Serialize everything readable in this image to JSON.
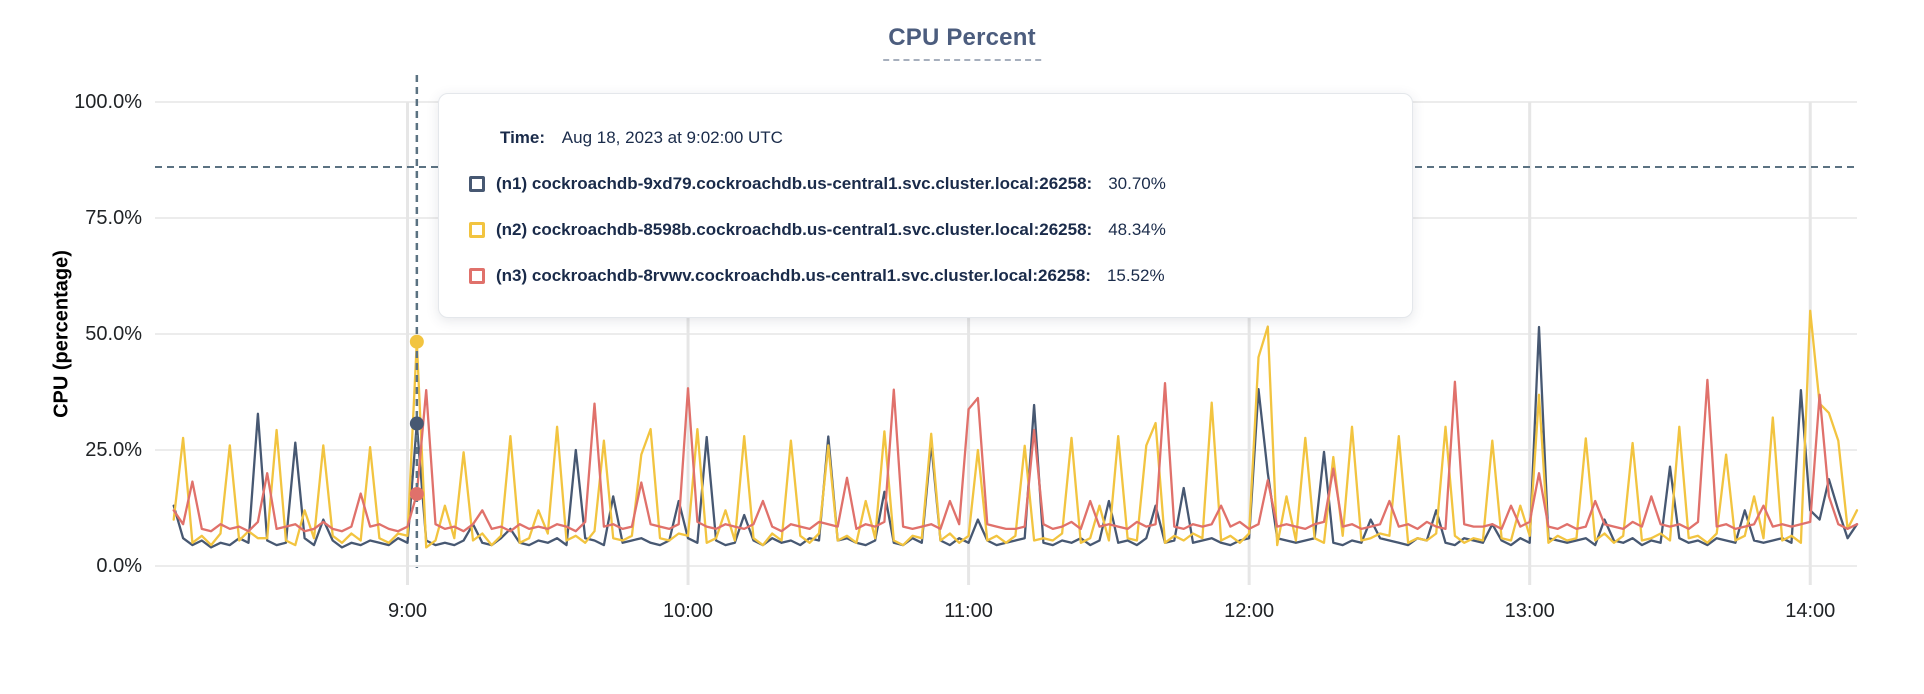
{
  "title": {
    "text": "CPU Percent"
  },
  "y_axis": {
    "label": "CPU (percentage)"
  },
  "tooltip": {
    "time_label": "Time:",
    "time_value": "Aug 18, 2023 at 9:02:00 UTC",
    "rows": [
      {
        "label": "(n1) cockroachdb-9xd79.cockroachdb.us-central1.svc.cluster.local:26258:",
        "value": "30.70%"
      },
      {
        "label": "(n2) cockroachdb-8598b.cockroachdb.us-central1.svc.cluster.local:26258:",
        "value": "48.34%"
      },
      {
        "label": "(n3) cockroachdb-8rvwv.cockroachdb.us-central1.svc.cluster.local:26258:",
        "value": "15.52%"
      }
    ]
  },
  "colors": {
    "crosshair": "#5B7282",
    "grid_h": "#ECECEC",
    "grid_v": "#E6E6E6",
    "tick_text": "#202326",
    "title": "#4C5D7E",
    "tooltip_text": "#1A2B4A"
  },
  "chart_data": {
    "type": "line",
    "title": "CPU Percent",
    "xlabel": "",
    "ylabel": "CPU (percentage)",
    "ylim": [
      0,
      100
    ],
    "grid": true,
    "legend_position": "hover-tooltip-overlay",
    "y_ticks": [
      {
        "value": 0,
        "label": "0.0%"
      },
      {
        "value": 25,
        "label": "25.0%"
      },
      {
        "value": 50,
        "label": "50.0%"
      },
      {
        "value": 75,
        "label": "75.0%"
      },
      {
        "value": 100,
        "label": "100.0%"
      }
    ],
    "x_domain_minutes": [
      486,
      850
    ],
    "x_ticks": [
      {
        "minute": 540,
        "label": "9:00"
      },
      {
        "minute": 600,
        "label": "10:00"
      },
      {
        "minute": 660,
        "label": "11:00"
      },
      {
        "minute": 720,
        "label": "12:00"
      },
      {
        "minute": 780,
        "label": "13:00"
      },
      {
        "minute": 840,
        "label": "14:00"
      }
    ],
    "x_start_minute": 490,
    "x_step_minutes": 2,
    "hover": {
      "minute": 542,
      "time": "Aug 18, 2023 at 9:02:00 UTC",
      "crosshair_y_percent": 86
    },
    "series": [
      {
        "name": "(n1) cockroachdb-9xd79.cockroachdb.us-central1.svc.cluster.local:26258",
        "color": "#475872",
        "hover_value_percent": 30.7,
        "values": [
          13,
          6,
          4.5,
          5.5,
          4,
          5,
          4.5,
          6,
          5,
          32.8,
          5.5,
          4.5,
          5,
          26.6,
          6,
          4.5,
          10,
          5.5,
          4,
          5,
          4.5,
          5.5,
          5,
          4.5,
          6,
          5,
          30.7,
          5.5,
          4.5,
          5,
          4.5,
          5.5,
          9,
          5,
          4.5,
          6,
          8,
          5,
          4.5,
          5.5,
          5,
          6,
          4.5,
          25,
          6,
          5.5,
          4.5,
          15,
          5,
          5.5,
          6,
          5,
          4.5,
          5.5,
          14,
          6,
          5,
          27.8,
          5.5,
          4.5,
          5,
          11,
          5.5,
          4.5,
          6,
          5,
          5.5,
          4.5,
          6,
          5.5,
          27.9,
          5.5,
          6,
          5,
          4.5,
          5.5,
          16,
          5,
          4.5,
          6,
          5,
          26.5,
          5.5,
          4.5,
          6,
          5,
          10,
          5.5,
          4.5,
          5,
          5.5,
          6,
          34.7,
          5,
          4.5,
          5.5,
          5,
          6,
          4.5,
          5.5,
          14,
          5,
          5.5,
          4.5,
          6,
          13,
          5,
          5.5,
          16.8,
          5,
          5.5,
          6,
          5,
          4.5,
          5.5,
          6,
          38.1,
          20,
          6,
          5.5,
          5,
          5.5,
          6,
          24.6,
          5,
          4.5,
          5.5,
          5,
          10,
          6,
          5.5,
          5,
          4.5,
          6,
          5.5,
          12,
          5,
          4.5,
          6,
          5.5,
          5,
          9,
          5.5,
          4.5,
          6,
          5,
          51.5,
          6,
          5.5,
          5,
          5.5,
          6,
          4.5,
          10,
          5.5,
          5,
          6,
          4.5,
          5.5,
          5,
          21.4,
          6,
          5,
          5.5,
          4.5,
          6,
          5.5,
          5,
          12,
          5.5,
          5,
          5.5,
          6,
          5,
          37.9,
          12,
          10,
          18.7,
          12,
          6,
          9
        ]
      },
      {
        "name": "(n2) cockroachdb-8598b.cockroachdb.us-central1.svc.cluster.local:26258",
        "color": "#F2C440",
        "hover_value_percent": 48.34,
        "values": [
          10,
          27.6,
          5,
          6.5,
          4.5,
          7,
          26,
          5.5,
          7.5,
          6,
          6,
          29.3,
          5.5,
          4.5,
          12,
          6,
          26,
          6.5,
          5,
          7,
          5.5,
          25.6,
          6,
          5,
          7,
          6.5,
          48.34,
          4,
          5.5,
          13,
          6,
          24.5,
          5.5,
          7,
          4.5,
          6.5,
          28,
          5,
          6,
          12,
          7,
          30,
          5.5,
          6.5,
          5,
          7.5,
          27,
          6,
          5.5,
          6.5,
          24,
          29.5,
          6,
          5.5,
          7,
          6.5,
          29.5,
          5,
          6,
          12,
          5.5,
          28,
          6,
          4.5,
          7,
          5.5,
          27,
          6.5,
          5,
          7,
          26,
          5.5,
          6.5,
          5,
          14,
          6,
          29,
          5.5,
          4.5,
          6.5,
          6,
          28.5,
          5.5,
          7,
          5,
          6.5,
          25,
          5.5,
          6.5,
          5,
          6.5,
          25.9,
          5.5,
          6,
          5.5,
          7,
          27.6,
          5,
          6,
          13,
          5.5,
          28,
          6,
          5.5,
          26,
          30.8,
          5,
          6.5,
          5.5,
          7,
          6,
          35.2,
          5.5,
          6.5,
          5,
          7,
          45,
          51.6,
          4.5,
          15,
          5.5,
          27.6,
          6,
          5,
          23.5,
          6.5,
          30,
          5.5,
          6,
          7,
          6.5,
          28,
          5,
          6,
          5.5,
          7,
          30,
          6.5,
          5,
          6,
          5.5,
          27,
          6,
          5.5,
          13,
          6.5,
          36.9,
          5,
          6.5,
          5.5,
          6,
          27.5,
          5.5,
          7,
          5,
          6.5,
          26.5,
          5.5,
          6,
          7,
          5.5,
          30,
          6,
          6.5,
          5,
          7,
          24,
          5.5,
          6.5,
          15,
          6,
          32,
          5.5,
          6.5,
          5,
          55,
          35,
          33,
          27,
          8,
          12
        ]
      },
      {
        "name": "(n3) cockroachdb-8rvwv.cockroachdb.us-central1.svc.cluster.local:26258",
        "color": "#E0716B",
        "hover_value_percent": 15.52,
        "values": [
          12,
          9,
          18.2,
          8,
          7.5,
          9,
          8,
          8.5,
          7.5,
          9.5,
          20,
          8,
          8.5,
          9,
          7.5,
          8,
          9.5,
          8,
          7.5,
          8.5,
          15.6,
          8.5,
          9,
          8,
          7.5,
          8.5,
          15.52,
          37.9,
          9,
          8,
          8.5,
          7.5,
          9,
          12,
          8,
          8.5,
          7.5,
          9,
          8,
          8.5,
          8,
          9,
          8.5,
          7.5,
          9.5,
          35,
          8.5,
          9,
          8,
          8.5,
          18,
          9,
          8.5,
          8,
          9,
          38.3,
          9.5,
          8.5,
          8,
          9,
          8.5,
          8,
          9,
          14,
          8.5,
          7.5,
          9,
          8.5,
          8,
          9.5,
          9,
          8.5,
          19,
          8,
          9,
          8.5,
          9.5,
          38,
          8.5,
          8,
          8.5,
          9,
          8,
          14,
          9,
          33.8,
          36.2,
          9,
          8.5,
          8,
          8,
          8.5,
          29.3,
          9,
          8,
          8.5,
          9.5,
          8,
          14,
          8.5,
          9,
          8.5,
          8,
          9.5,
          8.5,
          9,
          39.4,
          8.5,
          8,
          9,
          8.5,
          9,
          13,
          8.5,
          9.5,
          8,
          9,
          18.5,
          8.5,
          9,
          8.5,
          8,
          9,
          9.5,
          21,
          8.5,
          9,
          8,
          8.5,
          9,
          14,
          8.5,
          9,
          8,
          9.5,
          8.5,
          8,
          39.7,
          9,
          8.5,
          8.5,
          9,
          8,
          13,
          8.5,
          9.5,
          20,
          8.5,
          8,
          9,
          8,
          8.5,
          14,
          9,
          8.5,
          8,
          9.5,
          8.5,
          15,
          9,
          8.5,
          9,
          8,
          9.5,
          40.1,
          8.5,
          9,
          8,
          8.5,
          9,
          13,
          8.5,
          9,
          8.5,
          9,
          9.5,
          36.9,
          15,
          9,
          8,
          9
        ]
      }
    ]
  }
}
